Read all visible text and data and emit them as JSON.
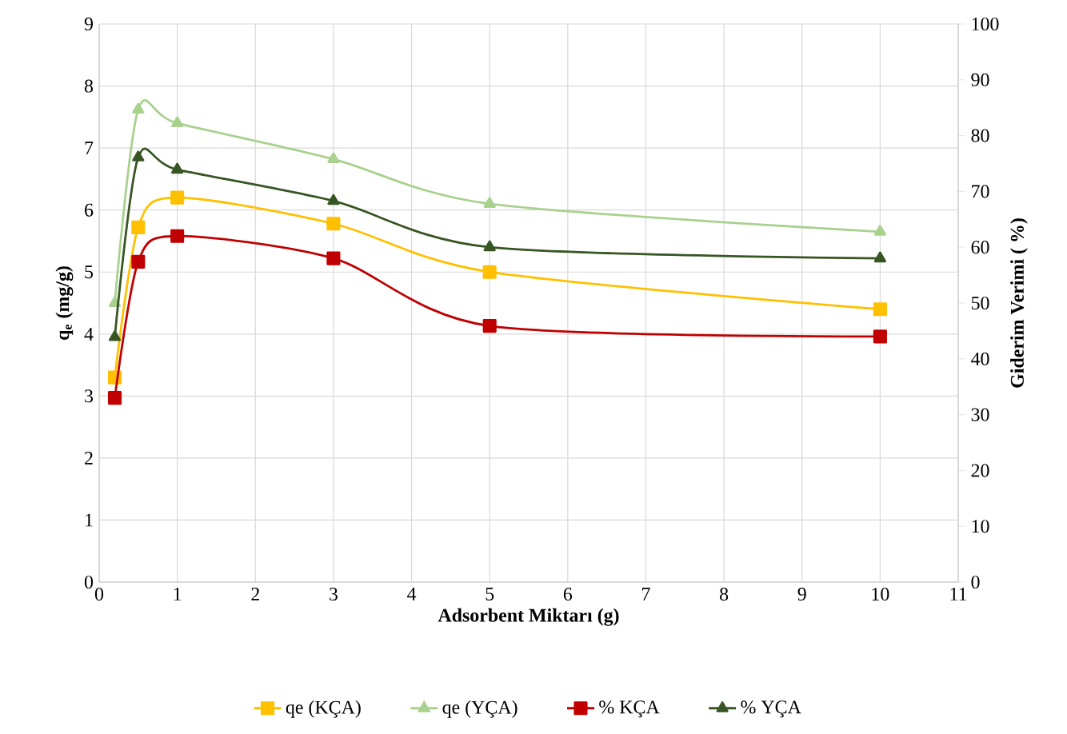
{
  "chart_data": {
    "type": "line",
    "xlabel": "Adsorbent Miktarı (g)",
    "ylabel": "q$_{e}$ (mg/g)",
    "y2label": "Giderim Verimi ( %)",
    "xlim": [
      0,
      11
    ],
    "xticks": [
      0,
      1,
      2,
      3,
      4,
      5,
      6,
      7,
      8,
      9,
      10,
      11
    ],
    "ylim": [
      0,
      9
    ],
    "yticks": [
      0,
      1,
      2,
      3,
      4,
      5,
      6,
      7,
      8,
      9
    ],
    "y2lim": [
      0,
      100
    ],
    "y2ticks": [
      0,
      10,
      20,
      30,
      40,
      50,
      60,
      70,
      80,
      90,
      100
    ],
    "grid": true,
    "legend": "bottom",
    "line_style": "solid",
    "series": [
      {
        "name": "qe (KÇA)",
        "color": "#ffc000",
        "marker": "square",
        "x": [
          0.2,
          0.5,
          1,
          3,
          5,
          10
        ],
        "values": [
          3.3,
          5.72,
          6.2,
          5.78,
          5.0,
          4.4
        ]
      },
      {
        "name": "qe (YÇA)",
        "color": "#a9d18e",
        "marker": "triangle",
        "x": [
          0.2,
          0.5,
          1,
          3,
          5,
          10
        ],
        "values": [
          4.5,
          7.62,
          7.4,
          6.82,
          6.1,
          5.65
        ]
      },
      {
        "name": "% KÇA",
        "color": "#c00000",
        "marker": "square",
        "axis": "y2",
        "x": [
          0.2,
          0.5,
          1,
          3,
          5,
          10
        ],
        "values": [
          33,
          57.4,
          62,
          58,
          45.9,
          44
        ]
      },
      {
        "name": "% YÇA",
        "color": "#375623",
        "marker": "triangle",
        "axis": "y2",
        "x": [
          0.2,
          0.5,
          1,
          3,
          5,
          10
        ],
        "values": [
          43.9,
          76.1,
          73.9,
          68.3,
          60,
          58
        ]
      }
    ]
  }
}
